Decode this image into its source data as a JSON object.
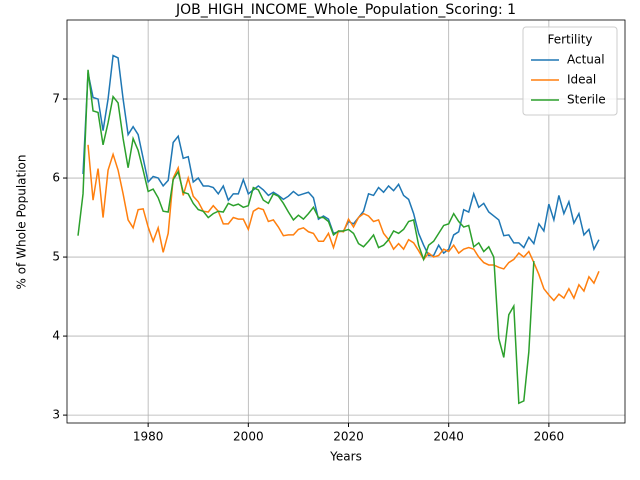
{
  "chart_data": {
    "type": "line",
    "title": "JOB_HIGH_INCOME_Whole_Population_Scoring: 1",
    "xlabel": "Years",
    "ylabel": "% of Whole Population",
    "legend_title": "Fertility",
    "legend": "upper right",
    "grid": true,
    "xlim": [
      1963.8,
      2075.2
    ],
    "ylim": [
      2.9,
      8.0
    ],
    "xticks": [
      1980,
      2000,
      2020,
      2040,
      2060
    ],
    "yticks": [
      3,
      4,
      5,
      6,
      7
    ],
    "x": [
      1966,
      1967,
      1968,
      1969,
      1970,
      1971,
      1972,
      1973,
      1974,
      1975,
      1976,
      1977,
      1978,
      1979,
      1980,
      1981,
      1982,
      1983,
      1984,
      1985,
      1986,
      1987,
      1988,
      1989,
      1990,
      1991,
      1992,
      1993,
      1994,
      1995,
      1996,
      1997,
      1998,
      1999,
      2000,
      2001,
      2002,
      2003,
      2004,
      2005,
      2006,
      2007,
      2008,
      2009,
      2010,
      2011,
      2012,
      2013,
      2014,
      2015,
      2016,
      2017,
      2018,
      2019,
      2020,
      2021,
      2022,
      2023,
      2024,
      2025,
      2026,
      2027,
      2028,
      2029,
      2030,
      2031,
      2032,
      2033,
      2034,
      2035,
      2036,
      2037,
      2038,
      2039,
      2040,
      2041,
      2042,
      2043,
      2044,
      2045,
      2046,
      2047,
      2048,
      2049,
      2050,
      2051,
      2052,
      2053,
      2054,
      2055,
      2056,
      2057,
      2058,
      2059,
      2060,
      2061,
      2062,
      2063,
      2064,
      2065,
      2066,
      2067,
      2068,
      2069,
      2070
    ],
    "series": [
      {
        "name": "Actual",
        "color": "#1f77b4",
        "values": [
          null,
          6.05,
          7.33,
          7.02,
          7.0,
          6.6,
          7.0,
          7.55,
          7.52,
          7.0,
          6.55,
          6.65,
          6.55,
          6.25,
          5.95,
          6.02,
          6.0,
          5.9,
          5.97,
          6.45,
          6.53,
          6.25,
          6.27,
          5.95,
          6.0,
          5.9,
          5.9,
          5.88,
          5.8,
          5.9,
          5.72,
          5.8,
          5.8,
          5.98,
          5.8,
          5.85,
          5.9,
          5.85,
          5.78,
          5.82,
          5.78,
          5.73,
          5.77,
          5.83,
          5.78,
          5.8,
          5.82,
          5.75,
          5.48,
          5.52,
          5.48,
          5.3,
          5.32,
          5.33,
          5.45,
          5.42,
          5.5,
          5.58,
          5.8,
          5.78,
          5.88,
          5.82,
          5.9,
          5.84,
          5.92,
          5.78,
          5.73,
          5.55,
          5.3,
          5.15,
          5.02,
          5.02,
          5.15,
          5.05,
          5.1,
          5.28,
          5.32,
          5.6,
          5.57,
          5.8,
          5.63,
          5.68,
          5.57,
          5.52,
          5.47,
          5.27,
          5.28,
          5.18,
          5.18,
          5.12,
          5.25,
          5.17,
          5.42,
          5.33,
          5.67,
          5.47,
          5.78,
          5.55,
          5.7,
          5.43,
          5.55,
          5.28,
          5.35,
          5.1,
          5.22
        ]
      },
      {
        "name": "Ideal",
        "color": "#ff7f0e",
        "values": [
          null,
          null,
          6.42,
          5.72,
          6.12,
          5.5,
          6.1,
          6.3,
          6.1,
          5.8,
          5.47,
          5.37,
          5.6,
          5.61,
          5.38,
          5.2,
          5.37,
          5.06,
          5.3,
          6.0,
          6.13,
          5.78,
          6.0,
          5.77,
          5.7,
          5.58,
          5.57,
          5.65,
          5.58,
          5.42,
          5.42,
          5.5,
          5.48,
          5.48,
          5.35,
          5.58,
          5.62,
          5.6,
          5.45,
          5.47,
          5.38,
          5.27,
          5.28,
          5.28,
          5.35,
          5.37,
          5.32,
          5.3,
          5.2,
          5.2,
          5.3,
          5.12,
          5.33,
          5.32,
          5.48,
          5.38,
          5.5,
          5.55,
          5.52,
          5.45,
          5.47,
          5.3,
          5.22,
          5.1,
          5.17,
          5.1,
          5.22,
          5.18,
          5.08,
          4.97,
          5.05,
          5.0,
          5.02,
          5.1,
          5.07,
          5.15,
          5.05,
          5.1,
          5.12,
          5.1,
          5.0,
          4.93,
          4.9,
          4.9,
          4.87,
          4.85,
          4.93,
          4.97,
          5.05,
          5.0,
          5.07,
          4.93,
          4.78,
          4.6,
          4.52,
          4.45,
          4.53,
          4.48,
          4.6,
          4.48,
          4.65,
          4.57,
          4.75,
          4.67,
          4.82
        ]
      },
      {
        "name": "Sterile",
        "color": "#2ca02c",
        "values": [
          5.27,
          5.8,
          7.37,
          6.85,
          6.83,
          6.42,
          6.7,
          7.03,
          6.95,
          6.5,
          6.13,
          6.5,
          6.35,
          6.1,
          5.83,
          5.86,
          5.75,
          5.58,
          5.57,
          5.98,
          6.08,
          5.82,
          5.8,
          5.68,
          5.6,
          5.58,
          5.5,
          5.55,
          5.58,
          5.57,
          5.68,
          5.65,
          5.67,
          5.63,
          5.65,
          5.88,
          5.85,
          5.72,
          5.68,
          5.8,
          5.77,
          5.68,
          5.57,
          5.47,
          5.53,
          5.48,
          5.55,
          5.63,
          5.5,
          5.5,
          5.45,
          5.28,
          5.33,
          5.33,
          5.35,
          5.3,
          5.17,
          5.13,
          5.2,
          5.28,
          5.12,
          5.15,
          5.22,
          5.33,
          5.3,
          5.35,
          5.45,
          5.47,
          5.15,
          4.97,
          5.15,
          5.2,
          5.3,
          5.4,
          5.42,
          5.55,
          5.45,
          5.38,
          5.4,
          5.13,
          5.18,
          5.07,
          5.13,
          5.0,
          3.97,
          3.73,
          4.27,
          4.38,
          3.15,
          3.18,
          3.8,
          4.95,
          null,
          null,
          null,
          null,
          null,
          null,
          null,
          null,
          null,
          null,
          null,
          null,
          null
        ]
      }
    ]
  }
}
